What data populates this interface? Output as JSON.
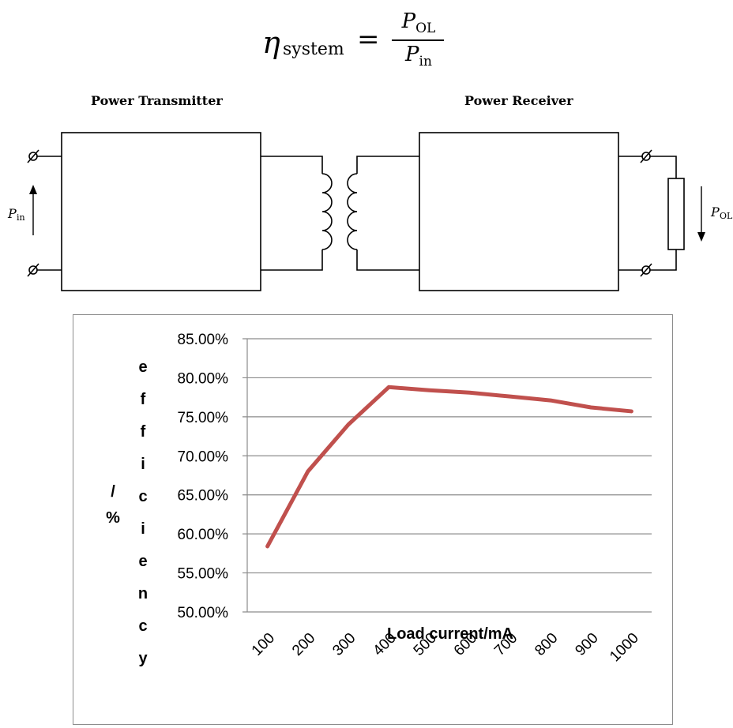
{
  "formula": {
    "lhs_symbol": "η",
    "lhs_subscript": "system",
    "equals": "=",
    "numerator_symbol": "P",
    "numerator_subscript": "OL",
    "denominator_symbol": "P",
    "denominator_subscript": "in"
  },
  "diagram": {
    "transmitter_label": "Power Transmitter",
    "receiver_label": "Power Receiver",
    "pin_symbol": "P",
    "pin_subscript": "in",
    "pol_symbol": "P",
    "pol_subscript": "OL"
  },
  "chart_data": {
    "type": "line",
    "categories": [
      "100",
      "200",
      "300",
      "400",
      "500",
      "600",
      "700",
      "800",
      "900",
      "1000"
    ],
    "series": [
      {
        "values": [
          58.4,
          68.0,
          74.0,
          78.8,
          78.4,
          78.1,
          77.6,
          77.1,
          76.2,
          75.7
        ],
        "color": "#c0504d"
      }
    ],
    "y_tick_labels": [
      "85.00%",
      "80.00%",
      "75.00%",
      "70.00%",
      "65.00%",
      "60.00%",
      "55.00%",
      "50.00%"
    ],
    "ylim": [
      50,
      85
    ],
    "y_step": 5,
    "xlabel": "Load current/mA",
    "ylabel_vertical": "efficiency",
    "ylabel_unit": "/%",
    "grid": true,
    "legend": "none",
    "gridline_color": "#8c8c8c"
  }
}
